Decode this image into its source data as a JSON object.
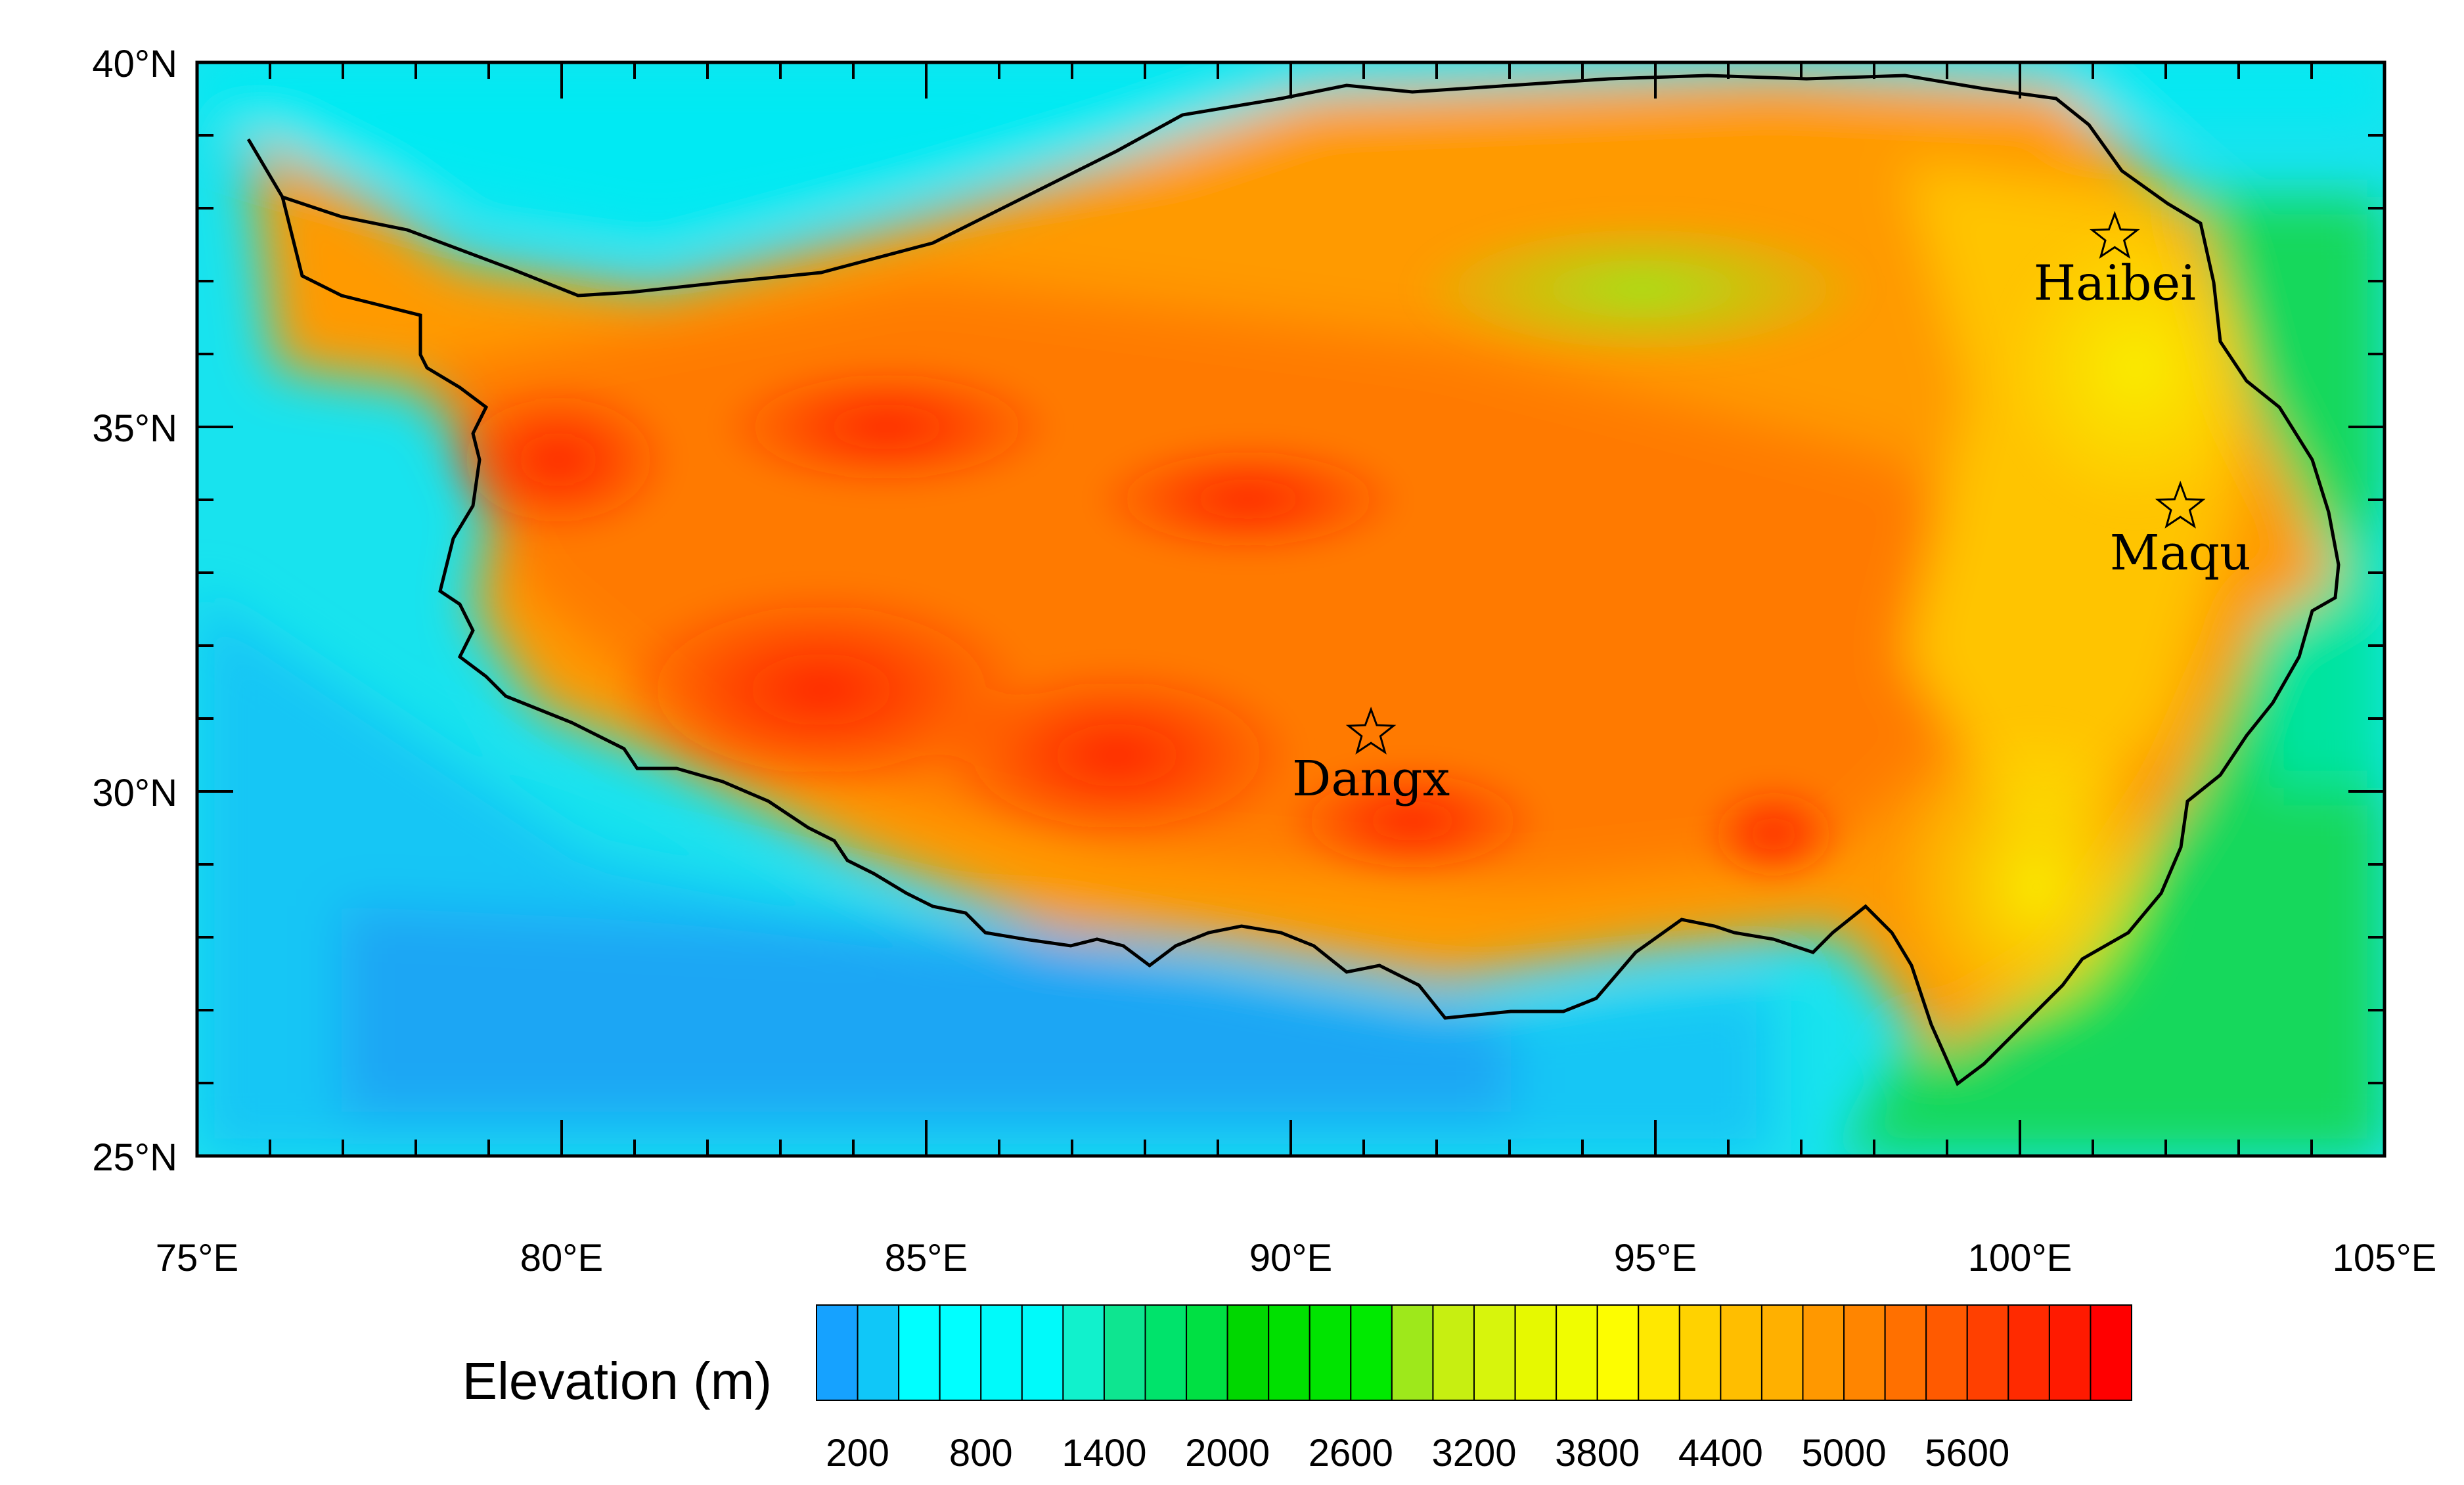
{
  "map": {
    "lon_range": [
      75,
      105
    ],
    "lat_range": [
      25,
      40
    ],
    "lon_ticks": [
      "75°E",
      "80°E",
      "85°E",
      "90°E",
      "95°E",
      "100°E",
      "105°E"
    ],
    "lat_ticks": [
      "40°N",
      "35°N",
      "30°N",
      "25°N"
    ],
    "boundary_color": "#000000"
  },
  "stations": [
    {
      "name": "Haibei",
      "lon": 101.3,
      "lat": 37.6,
      "marker": "star-icon"
    },
    {
      "name": "Maqu",
      "lon": 102.2,
      "lat": 33.9,
      "marker": "star-icon"
    },
    {
      "name": "Dangx",
      "lon": 91.1,
      "lat": 30.8,
      "marker": "star-icon"
    }
  ],
  "colorbar": {
    "title": "Elevation (m)",
    "tick_labels": [
      "200",
      "800",
      "1400",
      "2000",
      "2600",
      "3200",
      "3800",
      "4400",
      "5000",
      "5600"
    ],
    "colors": [
      "#16a2ff",
      "#10c7f8",
      "#00ffff",
      "#00ffff",
      "#00fafa",
      "#00fafa",
      "#11f1cc",
      "#0ee590",
      "#00e36b",
      "#00e043",
      "#00d700",
      "#00e000",
      "#00e400",
      "#00ea00",
      "#9ee81b",
      "#c7ef11",
      "#d7f50c",
      "#e6f900",
      "#f0fd00",
      "#fdfd00",
      "#ffe800",
      "#ffd200",
      "#ffbe00",
      "#ffb000",
      "#ff9800",
      "#ff8500",
      "#ff7000",
      "#ff5a00",
      "#ff4000",
      "#ff2a00",
      "#ff1a00",
      "#ff0000"
    ]
  }
}
